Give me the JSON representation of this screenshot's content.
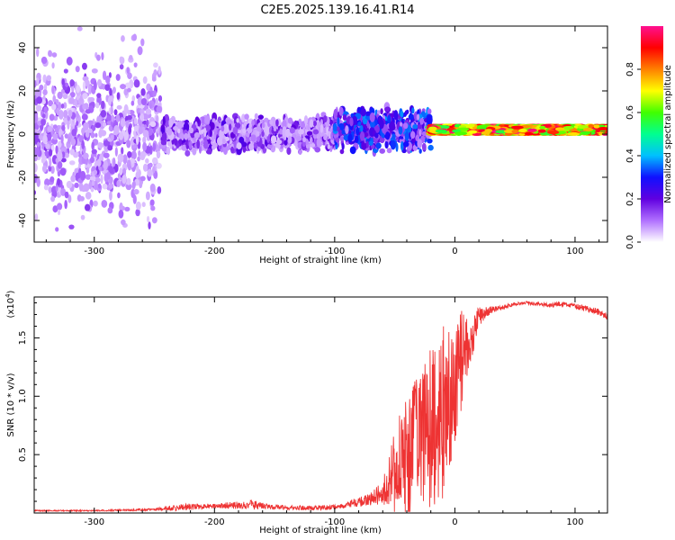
{
  "title": "C2E5.2025.139.16.41.R14",
  "chart_data": [
    {
      "type": "heatmap",
      "xlabel": "Height of straight line (km)",
      "ylabel": "Frequency (Hz)",
      "xlim": [
        -350,
        127
      ],
      "ylim": [
        -50,
        50
      ],
      "x_ticks": [
        -300,
        -200,
        -100,
        0,
        100
      ],
      "y_ticks": [
        -40,
        -20,
        0,
        20,
        40
      ],
      "colorbar": {
        "label": "Normalized spectral amplitude",
        "range": [
          0,
          1
        ],
        "ticks": [
          0.0,
          0.2,
          0.4,
          0.6,
          0.8
        ],
        "colors": [
          "#ffffff",
          "#b070ff",
          "#6000e0",
          "#1010ff",
          "#00c0ff",
          "#00ff90",
          "#40ff00",
          "#ffff00",
          "#ff8000",
          "#ff0000",
          "#ff1090"
        ]
      },
      "bands": [
        {
          "x": [
            -350,
            -245
          ],
          "f_center": 0,
          "f_halfwidth": 50,
          "amplitude": 0.1,
          "density": 0.55
        },
        {
          "x": [
            -245,
            -100
          ],
          "f_center": 0,
          "f_halfwidth": 10,
          "amplitude": 0.15,
          "density": 0.7
        },
        {
          "x": [
            -100,
            -20
          ],
          "f_center": 2,
          "f_halfwidth": 12,
          "amplitude": 0.25,
          "density": 0.6
        },
        {
          "x": [
            -20,
            127
          ],
          "f_center": 2,
          "f_halfwidth": 2,
          "amplitude": 0.85,
          "density": 1.0
        }
      ]
    },
    {
      "type": "line",
      "xlabel": "Height of straight line (km)",
      "ylabel": "SNR (10 * v/v)",
      "y_multiplier": "(x10",
      "y_multiplier_exp": "4",
      "xlim": [
        -350,
        127
      ],
      "ylim": [
        0,
        1.85
      ],
      "x_ticks": [
        -300,
        -200,
        -100,
        0,
        100
      ],
      "y_ticks": [
        0.5,
        1.0,
        1.5
      ],
      "y_tick_labels": [
        "0.5",
        "1.0",
        "1.5"
      ],
      "series": [
        {
          "color": "#ee3333",
          "x": [
            -350,
            -300,
            -250,
            -230,
            -200,
            -170,
            -150,
            -120,
            -100,
            -80,
            -70,
            -60,
            -50,
            -40,
            -30,
            -20,
            -10,
            0,
            5,
            10,
            15,
            20,
            30,
            40,
            50,
            60,
            70,
            80,
            90,
            100,
            110,
            120,
            127
          ],
          "y": [
            0.02,
            0.02,
            0.03,
            0.05,
            0.06,
            0.07,
            0.05,
            0.04,
            0.05,
            0.09,
            0.12,
            0.18,
            0.35,
            0.5,
            0.6,
            0.75,
            0.85,
            1.1,
            1.3,
            1.45,
            1.55,
            1.68,
            1.74,
            1.76,
            1.79,
            1.8,
            1.79,
            1.78,
            1.79,
            1.77,
            1.75,
            1.72,
            1.68
          ],
          "noise": [
            0.005,
            0.005,
            0.01,
            0.03,
            0.02,
            0.04,
            0.02,
            0.02,
            0.02,
            0.04,
            0.06,
            0.1,
            0.35,
            0.55,
            0.6,
            0.7,
            0.75,
            0.5,
            0.45,
            0.3,
            0.2,
            0.08,
            0.03,
            0.02,
            0.015,
            0.015,
            0.015,
            0.02,
            0.02,
            0.02,
            0.03,
            0.03,
            0.03
          ]
        }
      ]
    }
  ]
}
